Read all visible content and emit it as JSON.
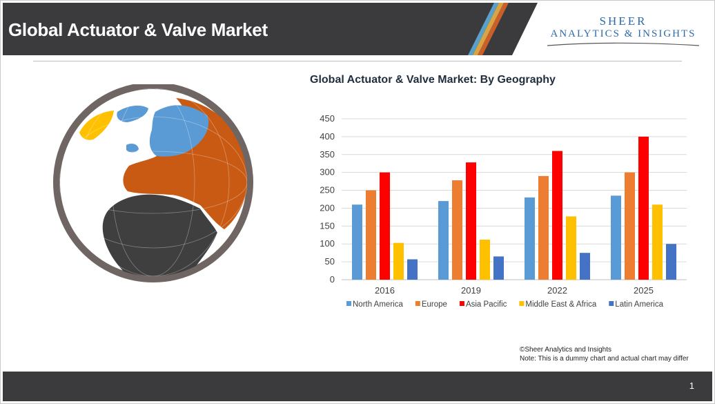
{
  "header": {
    "title": "Global Actuator & Valve Market"
  },
  "logo": {
    "line1": "SHEER",
    "line2": "ANALYTICS & INSIGHTS"
  },
  "footnote": {
    "line1": "©Sheer Analytics and Insights",
    "line2": "Note: This is a dummy chart and actual chart may differ"
  },
  "footer": {
    "page_number": "1"
  },
  "colors": {
    "header_bg": "#3b3b3e",
    "north_america": "#5b9bd5",
    "europe": "#ed7d31",
    "asia_pacific": "#ff0000",
    "middle_east_africa": "#ffc000",
    "latin_america": "#4472c4"
  },
  "chart_data": {
    "type": "bar",
    "title": "Global Actuator & Valve Market: By Geography",
    "categories": [
      "2016",
      "2019",
      "2022",
      "2025"
    ],
    "series": [
      {
        "name": "North America",
        "color": "#5b9bd5",
        "values": [
          210,
          220,
          230,
          235
        ]
      },
      {
        "name": "Europe",
        "color": "#ed7d31",
        "values": [
          250,
          278,
          290,
          300
        ]
      },
      {
        "name": "Asia Pacific",
        "color": "#ff0000",
        "values": [
          300,
          328,
          360,
          400
        ]
      },
      {
        "name": "Middle East & Africa",
        "color": "#ffc000",
        "values": [
          103,
          112,
          177,
          210
        ]
      },
      {
        "name": "Latin America",
        "color": "#4472c4",
        "values": [
          57,
          65,
          75,
          100
        ]
      }
    ],
    "yticks": [
      0,
      50,
      100,
      150,
      200,
      250,
      300,
      350,
      400,
      450
    ],
    "ylim": [
      0,
      450
    ],
    "grid": true,
    "legend": "bottom"
  }
}
